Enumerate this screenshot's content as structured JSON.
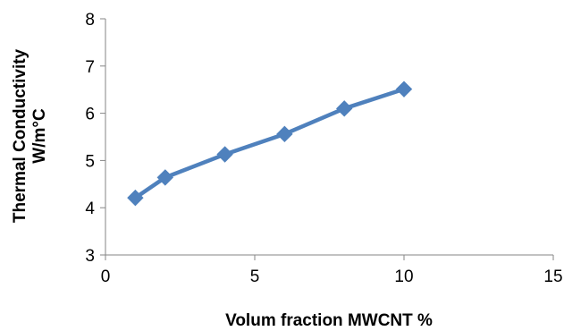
{
  "chart_data": {
    "type": "line",
    "title": "",
    "xlabel": "Volum fraction MWCNT %",
    "ylabel_line1": "Thermal Conductivity",
    "ylabel_line2": "W/m°C",
    "xlim": [
      0,
      15
    ],
    "ylim": [
      3,
      8
    ],
    "xticks": [
      "0",
      "5",
      "10",
      "15"
    ],
    "yticks": [
      "3",
      "4",
      "5",
      "6",
      "7",
      "8"
    ],
    "grid": false,
    "legend": "none",
    "series": [
      {
        "color": "#4f81bd",
        "marker": "diamond",
        "x": [
          1,
          2,
          4,
          6,
          8,
          10
        ],
        "y": [
          4.21,
          4.64,
          5.13,
          5.56,
          6.1,
          6.51
        ]
      }
    ]
  }
}
